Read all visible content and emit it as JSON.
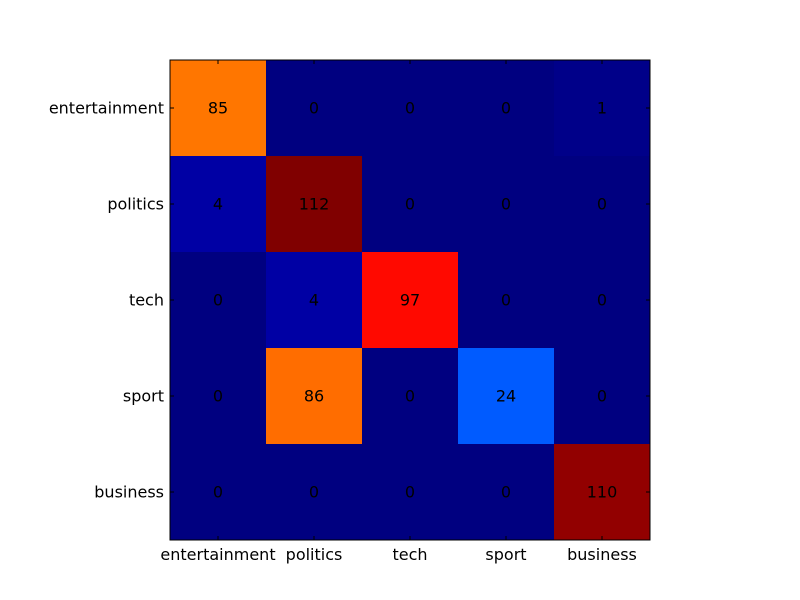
{
  "chart_data": {
    "type": "heatmap",
    "title": "",
    "xlabel": "",
    "ylabel": "",
    "row_labels": [
      "entertainment",
      "politics",
      "tech",
      "sport",
      "business"
    ],
    "col_labels": [
      "entertainment",
      "politics",
      "tech",
      "sport",
      "business"
    ],
    "values": [
      [
        85,
        0,
        0,
        0,
        1
      ],
      [
        4,
        112,
        0,
        0,
        0
      ],
      [
        0,
        4,
        97,
        0,
        0
      ],
      [
        0,
        86,
        0,
        24,
        0
      ],
      [
        0,
        0,
        0,
        0,
        110
      ]
    ],
    "value_range": [
      0,
      112
    ],
    "colormap": "jet",
    "grid": false,
    "legend": "none"
  }
}
